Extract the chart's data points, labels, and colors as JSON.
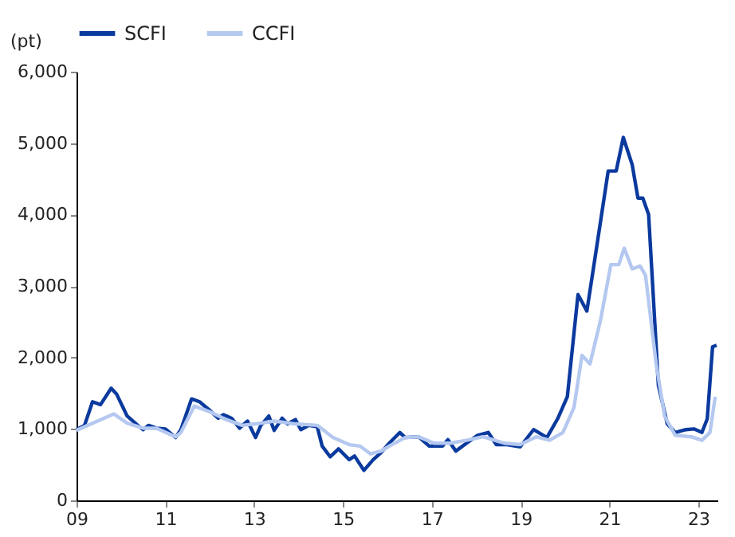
{
  "chart_data": {
    "type": "line",
    "ylabel": "(pt)",
    "legend": "top",
    "grid": false,
    "line_style": "solid",
    "marker": "none",
    "xlim": [
      9,
      23.43
    ],
    "xticks": [
      {
        "value": 9,
        "label": "09"
      },
      {
        "value": 11,
        "label": "11"
      },
      {
        "value": 13,
        "label": "13"
      },
      {
        "value": 15,
        "label": "15"
      },
      {
        "value": 17,
        "label": "17"
      },
      {
        "value": 19,
        "label": "19"
      },
      {
        "value": 21,
        "label": "21"
      },
      {
        "value": 23,
        "label": "23"
      }
    ],
    "ylim": [
      0,
      6000
    ],
    "yticks": [
      {
        "value": 0,
        "label": "0"
      },
      {
        "value": 1000,
        "label": "1,000"
      },
      {
        "value": 2000,
        "label": "2,000"
      },
      {
        "value": 3000,
        "label": "3,000"
      },
      {
        "value": 4000,
        "label": "4,000"
      },
      {
        "value": 5000,
        "label": "5,000"
      },
      {
        "value": 6000,
        "label": "6,000"
      }
    ],
    "series": [
      {
        "name": "SCFI",
        "color": "#0b3a9e",
        "x": [
          9.0,
          9.18,
          9.36,
          9.54,
          9.78,
          9.9,
          10.14,
          10.38,
          10.5,
          10.62,
          10.8,
          11.0,
          11.23,
          11.35,
          11.59,
          11.77,
          12.0,
          12.19,
          12.31,
          12.49,
          12.67,
          12.85,
          13.03,
          13.15,
          13.33,
          13.45,
          13.63,
          13.75,
          13.93,
          14.05,
          14.23,
          14.42,
          14.53,
          14.71,
          14.9,
          15.14,
          15.26,
          15.47,
          15.68,
          15.86,
          16.04,
          16.28,
          16.4,
          16.7,
          16.94,
          17.24,
          17.36,
          17.54,
          17.78,
          18.03,
          18.27,
          18.45,
          18.69,
          18.99,
          19.29,
          19.59,
          19.83,
          20.05,
          20.29,
          20.49,
          20.67,
          20.97,
          21.15,
          21.31,
          21.51,
          21.64,
          21.75,
          21.88,
          22.1,
          22.3,
          22.48,
          22.72,
          22.9,
          23.08,
          23.2,
          23.32,
          23.41
        ],
        "values": [
          990,
          1050,
          1380,
          1340,
          1570,
          1490,
          1180,
          1050,
          990,
          1050,
          1010,
          1000,
          880,
          990,
          1420,
          1380,
          1260,
          1150,
          1200,
          1150,
          1010,
          1110,
          880,
          1050,
          1180,
          980,
          1150,
          1070,
          1130,
          990,
          1050,
          1030,
          760,
          610,
          720,
          570,
          620,
          420,
          570,
          670,
          800,
          950,
          880,
          890,
          760,
          760,
          850,
          690,
          800,
          910,
          950,
          780,
          780,
          750,
          990,
          880,
          1140,
          1450,
          2880,
          2650,
          3380,
          4610,
          4610,
          5080,
          4700,
          4230,
          4230,
          4000,
          1610,
          1070,
          950,
          990,
          1000,
          950,
          1140,
          2150,
          2170
        ]
      },
      {
        "name": "CCFI",
        "color": "#b4c8f0",
        "x": [
          9.0,
          9.36,
          9.84,
          10.14,
          10.5,
          10.8,
          11.23,
          11.35,
          11.65,
          12.0,
          12.37,
          12.73,
          13.03,
          13.45,
          13.93,
          14.42,
          14.77,
          15.14,
          15.38,
          15.62,
          15.86,
          16.04,
          16.4,
          16.7,
          17.05,
          17.41,
          17.78,
          18.15,
          18.63,
          18.99,
          19.35,
          19.65,
          19.95,
          20.2,
          20.38,
          20.56,
          20.8,
          21.03,
          21.21,
          21.33,
          21.51,
          21.69,
          21.81,
          22.05,
          22.24,
          22.48,
          22.84,
          23.08,
          23.26,
          23.38
        ],
        "values": [
          980,
          1080,
          1210,
          1080,
          1010,
          1010,
          890,
          950,
          1320,
          1240,
          1130,
          1050,
          1070,
          1110,
          1070,
          1050,
          880,
          780,
          760,
          650,
          690,
          760,
          880,
          890,
          800,
          800,
          840,
          890,
          800,
          780,
          890,
          840,
          950,
          1300,
          2030,
          1910,
          2530,
          3300,
          3300,
          3530,
          3240,
          3280,
          3150,
          1910,
          1180,
          910,
          890,
          840,
          950,
          1450
        ]
      }
    ]
  }
}
